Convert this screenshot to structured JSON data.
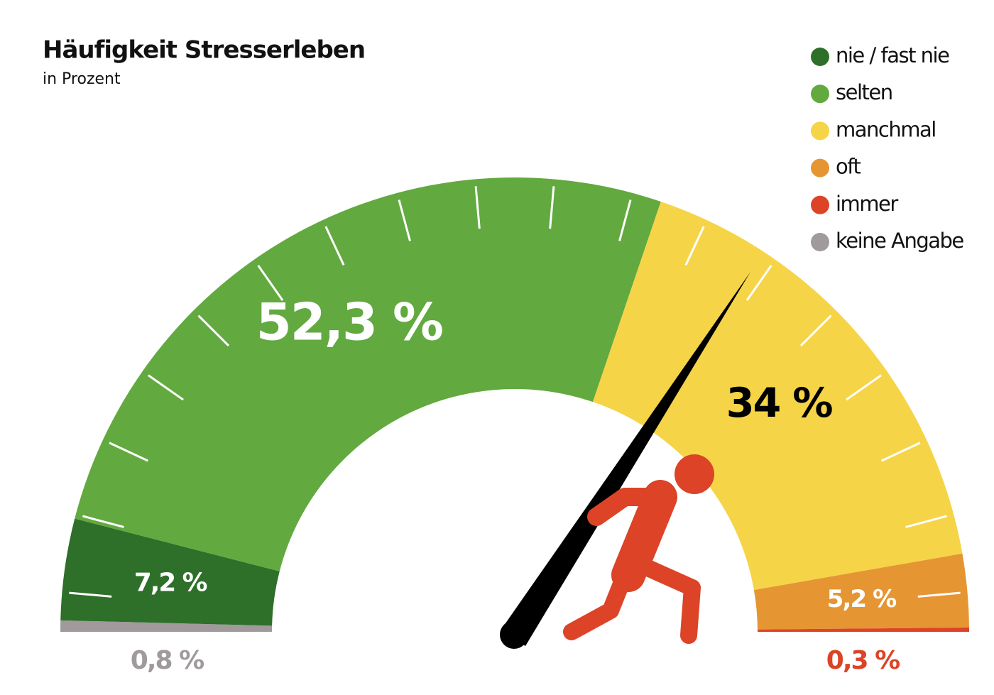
{
  "chart_data": {
    "type": "gauge",
    "title": "Häufigkeit Stresserleben",
    "subtitle": "in Prozent",
    "categories": [
      "nie / fast nie",
      "selten",
      "manchmal",
      "oft",
      "immer",
      "keine Angabe"
    ],
    "values": [
      7.2,
      52.3,
      34,
      5.2,
      0.3,
      0.8
    ],
    "value_labels": [
      "7,2 %",
      "52,3 %",
      "34 %",
      "5,2 %",
      "0,3 %",
      "0,8 %"
    ],
    "colors": [
      "#2e6f2a",
      "#62a93f",
      "#f6d447",
      "#e69533",
      "#dc4327",
      "#a09a9c"
    ],
    "legend": "top-right"
  }
}
